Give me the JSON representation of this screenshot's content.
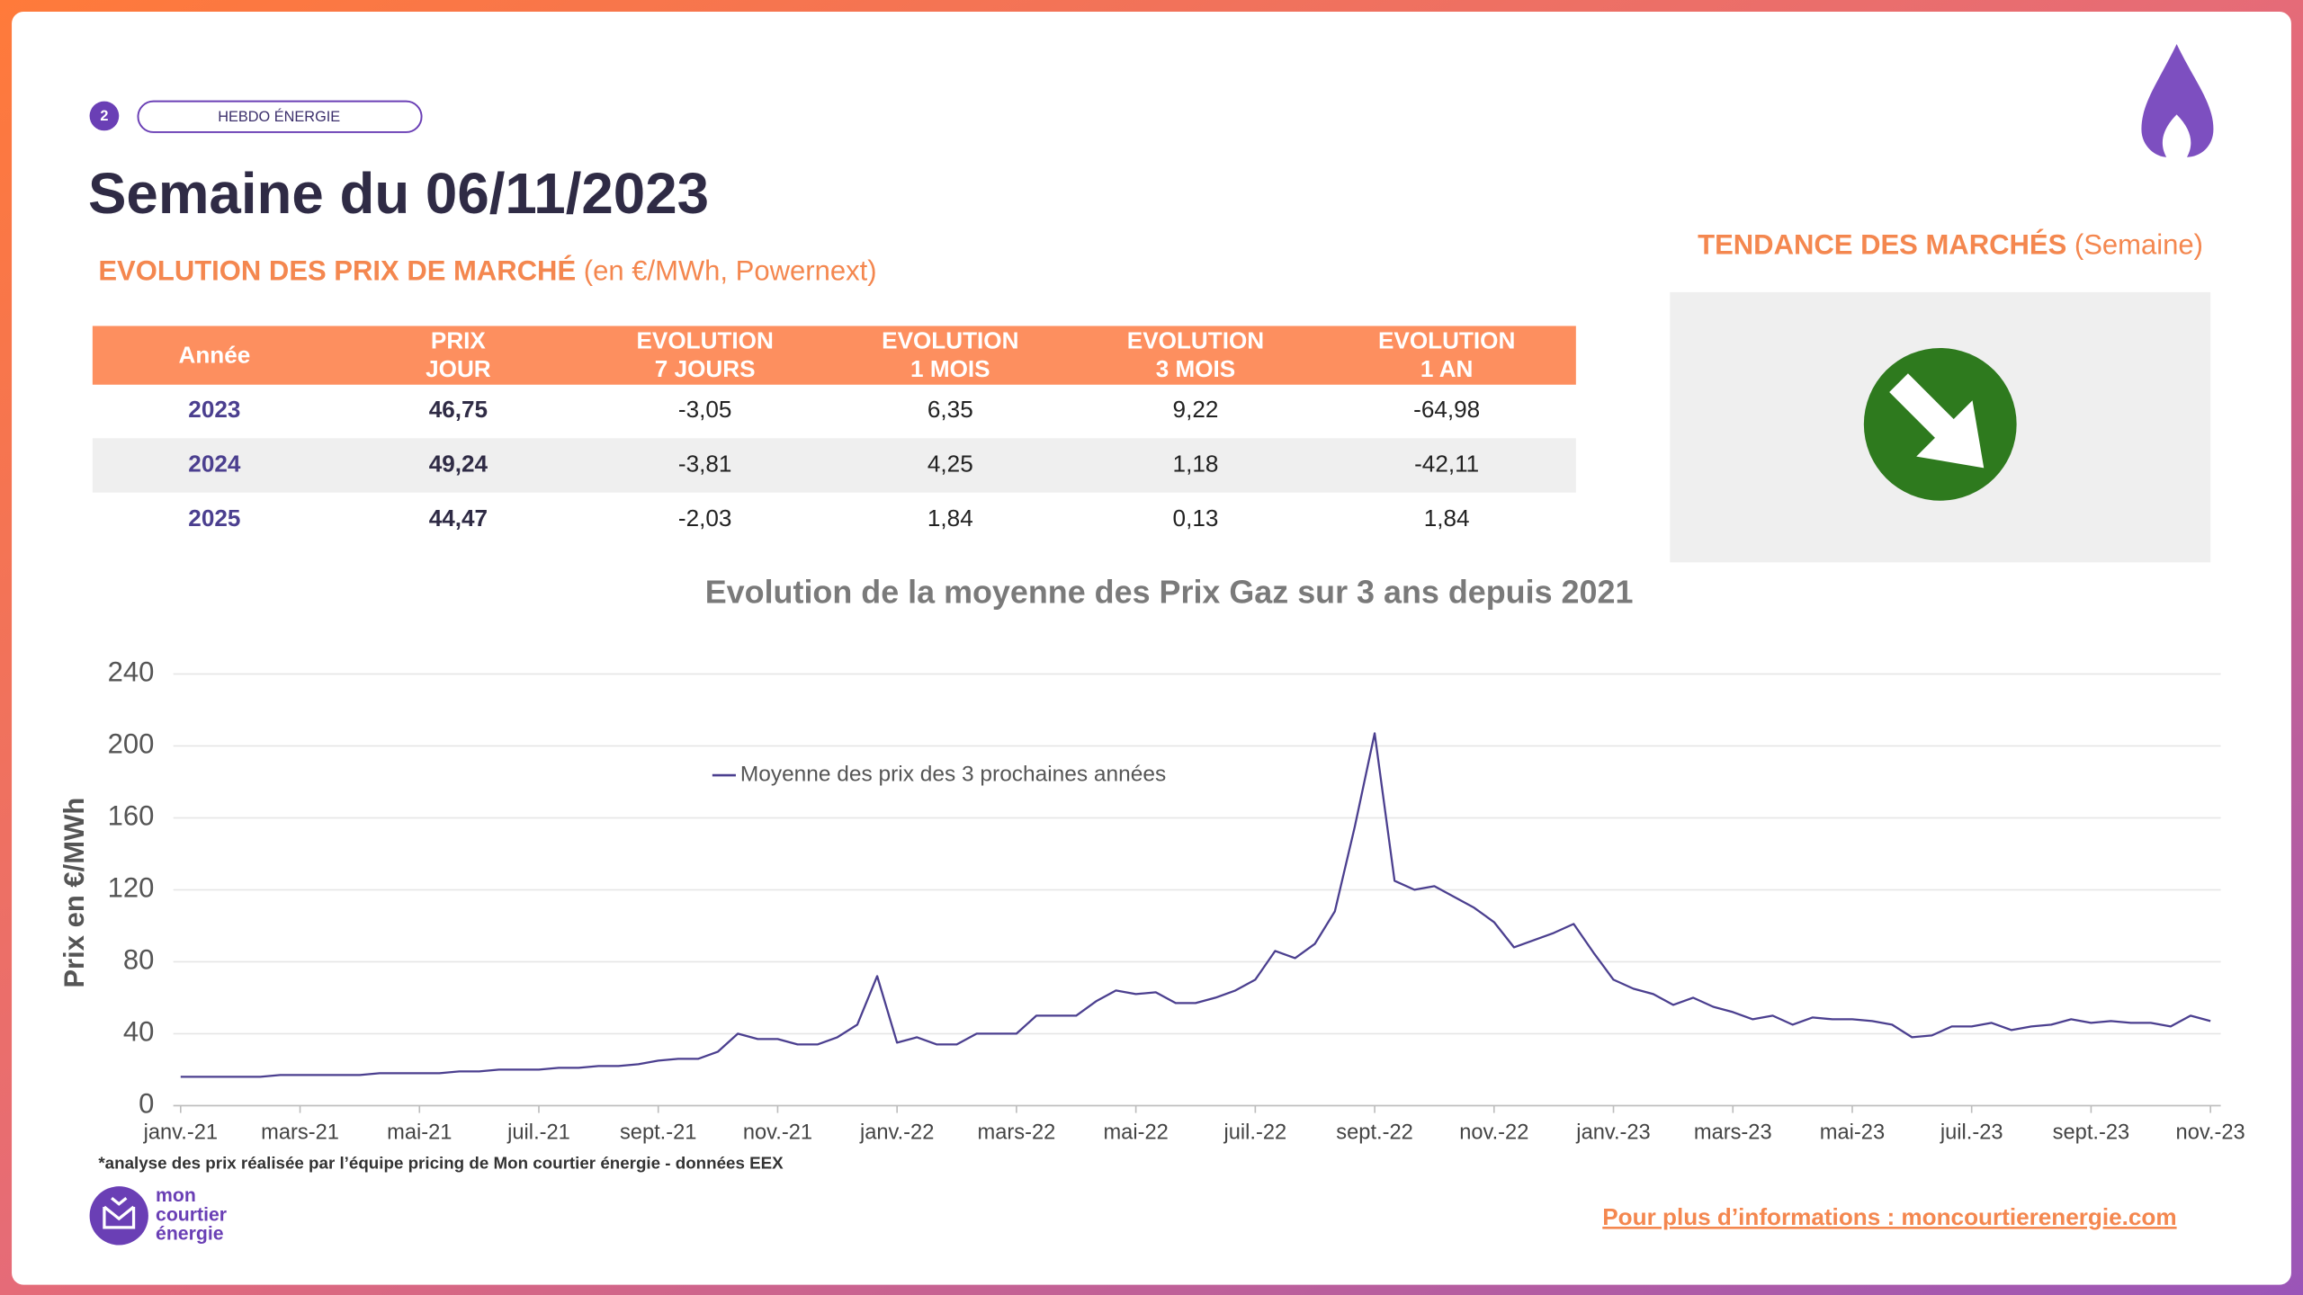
{
  "header": {
    "badge": "2",
    "tag": "HEBDO ÉNERGIE",
    "title": "Semaine du 06/11/2023",
    "subtitle": "EVOLUTION DES PRIX DE MARCHÉ",
    "subtitle_note": "(en €/MWh, Powernext)",
    "trend_title": "TENDANCE DES MARCHÉS",
    "trend_note": "(Semaine)"
  },
  "table": {
    "header": [
      [
        "Année"
      ],
      [
        "PRIX",
        "JOUR"
      ],
      [
        "EVOLUTION",
        "7 JOURS"
      ],
      [
        "EVOLUTION",
        "1 MOIS"
      ],
      [
        "EVOLUTION",
        "3 MOIS"
      ],
      [
        "EVOLUTION",
        "1 AN"
      ]
    ],
    "rows": [
      [
        "2023",
        "46,75",
        "-3,05",
        "6,35",
        "9,22",
        "-64,98"
      ],
      [
        "2024",
        "49,24",
        "-3,81",
        "4,25",
        "1,18",
        "-42,11"
      ],
      [
        "2025",
        "44,47",
        "-2,03",
        "1,84",
        "0,13",
        "1,84"
      ]
    ]
  },
  "chart_data": {
    "type": "line",
    "title": "Evolution de la moyenne des Prix Gaz sur 3 ans depuis 2021",
    "y_label": "Prix en €/MWh",
    "ylim": [
      0,
      240
    ],
    "yticks": [
      0,
      40,
      80,
      120,
      160,
      200,
      240
    ],
    "grid": true,
    "legend": "top",
    "categories": [
      "janv.-21",
      null,
      null,
      null,
      null,
      null,
      "mars-21",
      null,
      null,
      null,
      null,
      null,
      "mai-21",
      null,
      null,
      null,
      null,
      null,
      "juil.-21",
      null,
      null,
      null,
      null,
      null,
      "sept.-21",
      null,
      null,
      null,
      null,
      null,
      "nov.-21",
      null,
      null,
      null,
      null,
      null,
      "janv.-22",
      null,
      null,
      null,
      null,
      null,
      "mars-22",
      null,
      null,
      null,
      null,
      null,
      "mai-22",
      null,
      null,
      null,
      null,
      null,
      "juil.-22",
      null,
      null,
      null,
      null,
      null,
      "sept.-22",
      null,
      null,
      null,
      null,
      null,
      "nov.-22",
      null,
      null,
      null,
      null,
      null,
      "janv.-23",
      null,
      null,
      null,
      null,
      null,
      "mars-23",
      null,
      null,
      null,
      null,
      null,
      "mai-23",
      null,
      null,
      null,
      null,
      null,
      "juil.-23",
      null,
      null,
      null,
      null,
      null,
      "sept.-23",
      null,
      null,
      null,
      null,
      null,
      "nov.-23"
    ],
    "series": [
      {
        "name": "Moyenne des prix des 3 prochaines années",
        "color": "#4b3f8f",
        "values": [
          16,
          16,
          16,
          16,
          16,
          17,
          17,
          17,
          17,
          17,
          18,
          18,
          18,
          18,
          19,
          19,
          20,
          20,
          20,
          21,
          21,
          22,
          22,
          23,
          25,
          26,
          26,
          30,
          40,
          37,
          37,
          34,
          34,
          38,
          45,
          72,
          35,
          38,
          34,
          34,
          40,
          40,
          40,
          50,
          50,
          50,
          58,
          64,
          62,
          63,
          57,
          57,
          60,
          64,
          70,
          86,
          82,
          90,
          108,
          155,
          207,
          125,
          120,
          122,
          116,
          110,
          102,
          88,
          92,
          96,
          101,
          85,
          70,
          65,
          62,
          56,
          60,
          55,
          52,
          48,
          50,
          45,
          49,
          48,
          48,
          47,
          45,
          38,
          39,
          44,
          44,
          46,
          42,
          44,
          45,
          48,
          46,
          47,
          46,
          46,
          44,
          50,
          47
        ]
      }
    ]
  },
  "footer": {
    "note": "*analyse des prix réalisée par l’équipe pricing de Mon courtier énergie -  données EEX",
    "logo": [
      "mon",
      "courtier",
      "énergie"
    ],
    "link": "Pour plus d’informations : moncourtierenergie.com"
  }
}
